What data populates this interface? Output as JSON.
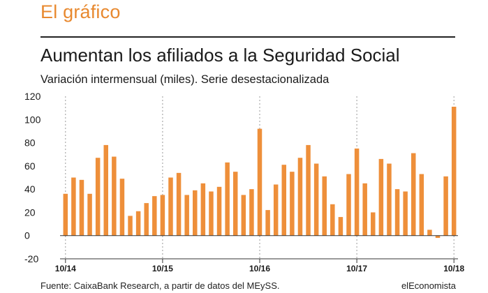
{
  "section_title": "El gráfico",
  "footer": {
    "source": "Fuente: CaixaBank Research, a partir de datos del MEySS.",
    "brand": "elEconomista"
  },
  "colors": {
    "bar": "#ee8f3a",
    "accent": "#e8892f",
    "grid": "#9a9a9a"
  },
  "chart_data": {
    "type": "bar",
    "title": "Aumentan los afiliados a la Seguridad Social",
    "subtitle": "Variación intermensual (miles). Serie desestacionalizada",
    "xlabel": "",
    "ylabel": "",
    "ylim": [
      -20,
      120
    ],
    "yticks": [
      -20,
      0,
      20,
      40,
      60,
      80,
      100,
      120
    ],
    "categories": [
      "10/14",
      "11/14",
      "12/14",
      "01/15",
      "02/15",
      "03/15",
      "04/15",
      "05/15",
      "06/15",
      "07/15",
      "08/15",
      "09/15",
      "10/15",
      "11/15",
      "12/15",
      "01/16",
      "02/16",
      "03/16",
      "04/16",
      "05/16",
      "06/16",
      "07/16",
      "08/16",
      "09/16",
      "10/16",
      "11/16",
      "12/16",
      "01/17",
      "02/17",
      "03/17",
      "04/17",
      "05/17",
      "06/17",
      "07/17",
      "08/17",
      "09/17",
      "10/17",
      "11/17",
      "12/17",
      "01/18",
      "02/18",
      "03/18",
      "04/18",
      "05/18",
      "06/18",
      "07/18",
      "08/18",
      "09/18",
      "10/18"
    ],
    "x_tick_labels": [
      "10/14",
      "10/15",
      "10/16",
      "10/17",
      "10/18"
    ],
    "values": [
      36,
      50,
      48,
      36,
      67,
      78,
      68,
      49,
      17,
      21,
      28,
      34,
      35,
      50,
      54,
      35,
      39,
      45,
      38,
      42,
      63,
      55,
      35,
      40,
      92,
      22,
      44,
      61,
      55,
      67,
      78,
      62,
      51,
      27,
      16,
      53,
      75,
      45,
      20,
      66,
      62,
      40,
      38,
      71,
      53,
      5,
      -2,
      51,
      111
    ],
    "grid": "dashed vertical lines at October of each year"
  }
}
